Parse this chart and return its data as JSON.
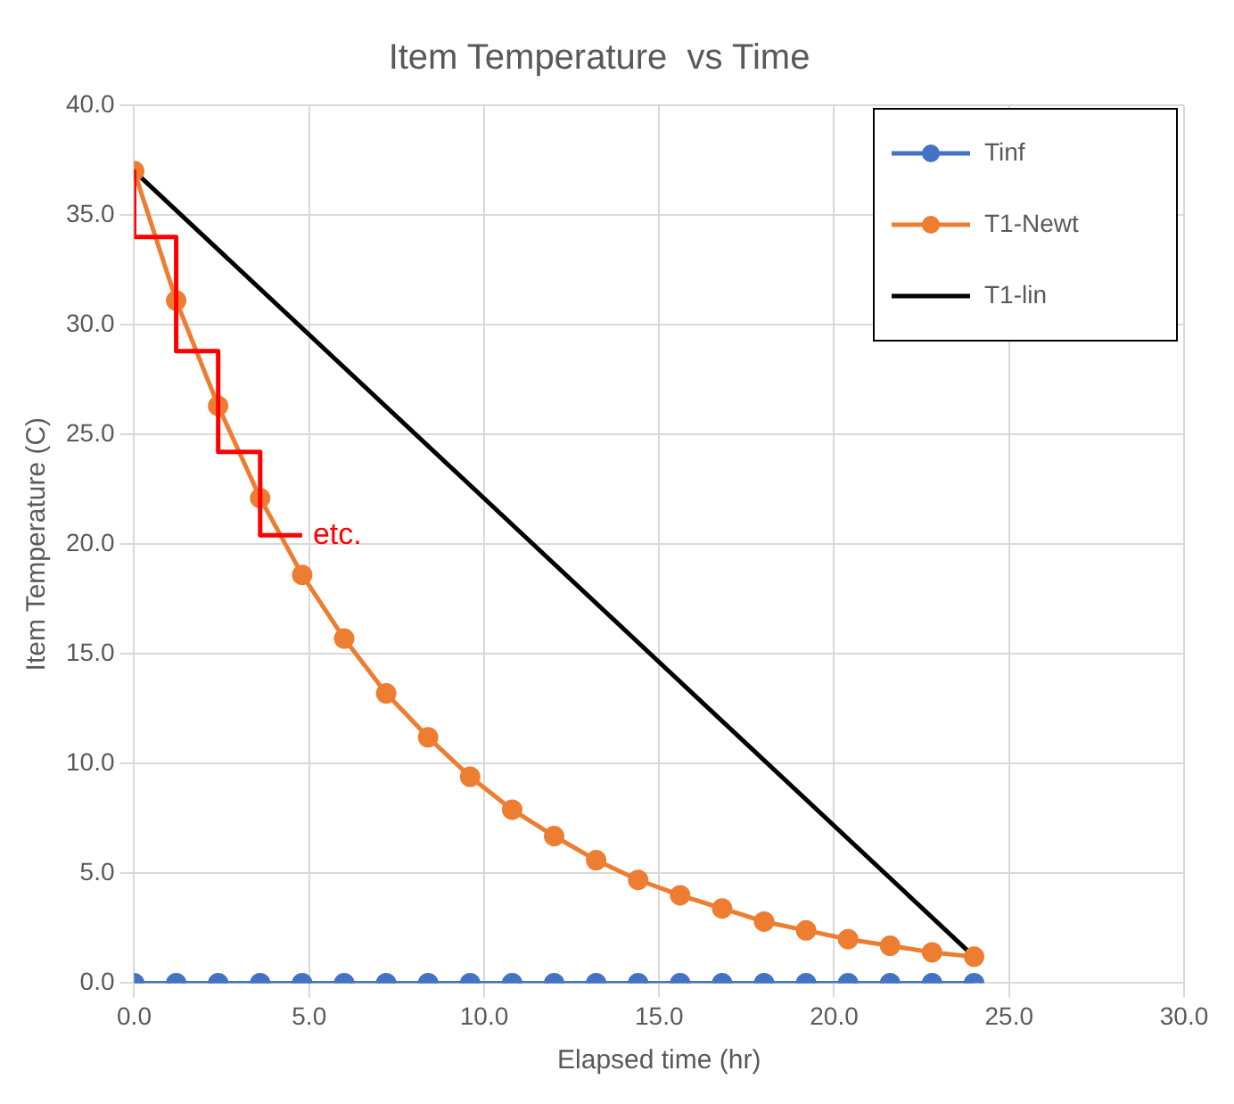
{
  "chart_data": {
    "type": "line",
    "title": "Item Temperature  vs Time",
    "xlabel": "Elapsed time (hr)",
    "ylabel": "Item Temperature (C)",
    "x": [
      0,
      1.2,
      2.4,
      3.6,
      4.8,
      6,
      7.2,
      8.4,
      9.6,
      10.8,
      12,
      13.2,
      14.4,
      15.6,
      16.8,
      18,
      19.2,
      20.4,
      21.6,
      22.8,
      24
    ],
    "series": [
      {
        "name": "Tinf",
        "color": "#4472c4",
        "marker": "circle",
        "values": [
          0,
          0,
          0,
          0,
          0,
          0,
          0,
          0,
          0,
          0,
          0,
          0,
          0,
          0,
          0,
          0,
          0,
          0,
          0,
          0,
          0
        ]
      },
      {
        "name": "T1-Newt",
        "color": "#ed7d31",
        "marker": "circle",
        "values": [
          37,
          31.1,
          26.3,
          22.1,
          18.6,
          15.7,
          13.2,
          11.2,
          9.4,
          7.9,
          6.7,
          5.6,
          4.7,
          4.0,
          3.4,
          2.8,
          2.4,
          2.0,
          1.7,
          1.4,
          1.2
        ]
      },
      {
        "name": "T1-lin",
        "color": "#000000",
        "marker": "none",
        "x": [
          0,
          24
        ],
        "values": [
          37,
          1.2
        ]
      },
      {
        "color": "#ff0000",
        "marker": "none",
        "x": [
          0,
          0,
          1.2,
          1.2,
          2.4,
          2.4,
          3.6,
          3.6,
          4.8
        ],
        "values": [
          37,
          34,
          34,
          28.8,
          28.8,
          24.2,
          24.2,
          20.4,
          20.4
        ]
      }
    ],
    "xlim": [
      0,
      30
    ],
    "xticks": [
      {
        "value": 0,
        "label": "0.0"
      },
      {
        "value": 5,
        "label": "5.0"
      },
      {
        "value": 10,
        "label": "10.0"
      },
      {
        "value": 15,
        "label": "15.0"
      },
      {
        "value": 20,
        "label": "20.0"
      },
      {
        "value": 25,
        "label": "25.0"
      },
      {
        "value": 30,
        "label": "30.0"
      }
    ],
    "ylim": [
      0,
      40
    ],
    "yticks": [
      {
        "value": 0,
        "label": "0.0"
      },
      {
        "value": 5,
        "label": "5.0"
      },
      {
        "value": 10,
        "label": "10.0"
      },
      {
        "value": 15,
        "label": "15.0"
      },
      {
        "value": 20,
        "label": "20.0"
      },
      {
        "value": 25,
        "label": "25.0"
      },
      {
        "value": 30,
        "label": "30.0"
      },
      {
        "value": 35,
        "label": "35.0"
      },
      {
        "value": 40,
        "label": "40.0"
      }
    ],
    "annotations": [
      "etc."
    ],
    "grid": true,
    "legend": "top right"
  }
}
